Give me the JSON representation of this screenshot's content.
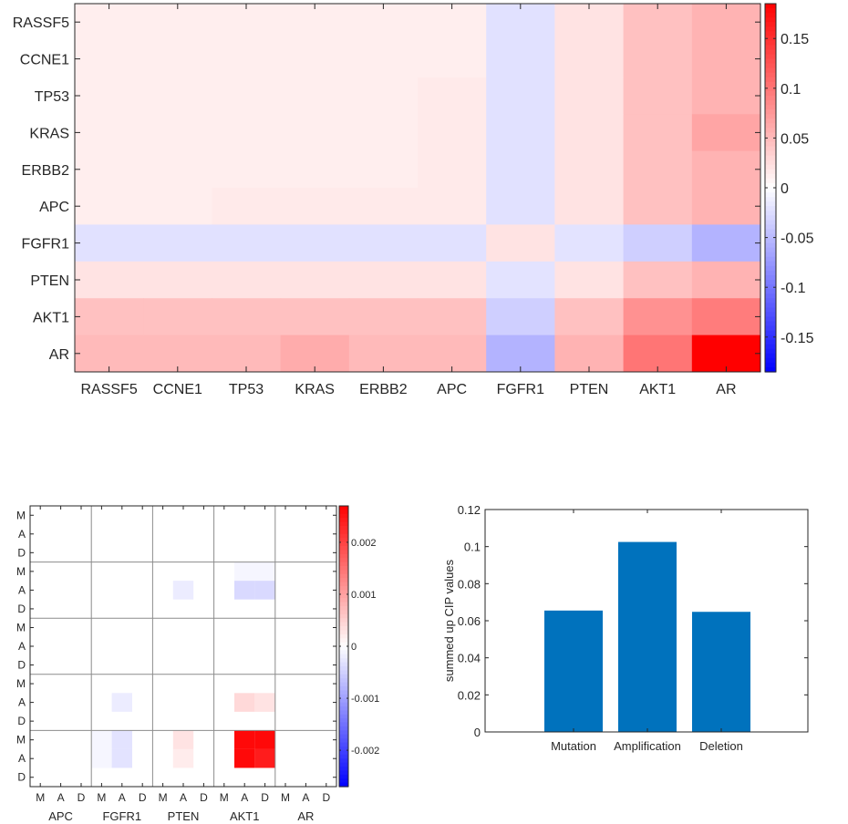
{
  "chart_data": [
    {
      "type": "heatmap",
      "rows": [
        "RASSF5",
        "CCNE1",
        "TP53",
        "KRAS",
        "ERBB2",
        "APC",
        "FGFR1",
        "PTEN",
        "AKT1",
        "AR"
      ],
      "cols": [
        "RASSF5",
        "CCNE1",
        "TP53",
        "KRAS",
        "ERBB2",
        "APC",
        "FGFR1",
        "PTEN",
        "AKT1",
        "AR"
      ],
      "values": [
        [
          0.012,
          0.012,
          0.012,
          0.012,
          0.012,
          0.012,
          -0.022,
          0.02,
          0.045,
          0.055
        ],
        [
          0.012,
          0.012,
          0.012,
          0.012,
          0.012,
          0.012,
          -0.022,
          0.02,
          0.045,
          0.055
        ],
        [
          0.012,
          0.012,
          0.012,
          0.012,
          0.012,
          0.015,
          -0.022,
          0.02,
          0.045,
          0.055
        ],
        [
          0.012,
          0.012,
          0.012,
          0.012,
          0.012,
          0.015,
          -0.022,
          0.02,
          0.045,
          0.065
        ],
        [
          0.012,
          0.012,
          0.012,
          0.012,
          0.012,
          0.015,
          -0.022,
          0.02,
          0.045,
          0.055
        ],
        [
          0.012,
          0.012,
          0.015,
          0.015,
          0.015,
          0.015,
          -0.022,
          0.02,
          0.045,
          0.055
        ],
        [
          -0.022,
          -0.022,
          -0.022,
          -0.022,
          -0.022,
          -0.022,
          0.02,
          -0.02,
          -0.035,
          -0.055
        ],
        [
          0.02,
          0.02,
          0.02,
          0.02,
          0.02,
          0.02,
          -0.02,
          0.02,
          0.045,
          0.055
        ],
        [
          0.045,
          0.045,
          0.045,
          0.045,
          0.045,
          0.045,
          -0.035,
          0.045,
          0.08,
          0.095
        ],
        [
          0.05,
          0.05,
          0.05,
          0.06,
          0.05,
          0.05,
          -0.055,
          0.055,
          0.1,
          0.185
        ]
      ],
      "colorbar": {
        "ticks": [
          0.15,
          0.1,
          0.05,
          0,
          -0.05,
          -0.1,
          -0.15
        ],
        "tick_labels": [
          "0.15",
          "0.1",
          "0.05",
          "0",
          "-0.05",
          "-0.1",
          "-0.15"
        ],
        "range": [
          -0.185,
          0.185
        ]
      },
      "colors": {
        "neg": "#0000ff",
        "mid": "#ffffff",
        "pos": "#ff0000"
      }
    },
    {
      "type": "heatmap",
      "row_groups": [
        "APC",
        "FGFR1",
        "PTEN",
        "AKT1",
        "AR"
      ],
      "row_sub": [
        "M",
        "A",
        "D"
      ],
      "col_groups": [
        "APC",
        "FGFR1",
        "PTEN",
        "AKT1",
        "AR"
      ],
      "col_sub": [
        "M",
        "A",
        "D"
      ],
      "cells": [
        {
          "row": 3,
          "col": 10,
          "value": -0.0001
        },
        {
          "row": 3,
          "col": 11,
          "value": -0.0001
        },
        {
          "row": 4,
          "col": 10,
          "value": -0.0004
        },
        {
          "row": 4,
          "col": 11,
          "value": -0.0004
        },
        {
          "row": 4,
          "col": 7,
          "value": -0.0002
        },
        {
          "row": 10,
          "col": 4,
          "value": -0.0002
        },
        {
          "row": 10,
          "col": 10,
          "value": 0.0004
        },
        {
          "row": 10,
          "col": 11,
          "value": 0.0003
        },
        {
          "row": 12,
          "col": 3,
          "value": -0.0001
        },
        {
          "row": 12,
          "col": 4,
          "value": -0.0003
        },
        {
          "row": 12,
          "col": 7,
          "value": 0.0003
        },
        {
          "row": 12,
          "col": 10,
          "value": 0.0026
        },
        {
          "row": 12,
          "col": 11,
          "value": 0.0026
        },
        {
          "row": 13,
          "col": 3,
          "value": -0.0001
        },
        {
          "row": 13,
          "col": 4,
          "value": -0.0003
        },
        {
          "row": 13,
          "col": 7,
          "value": 0.0002
        },
        {
          "row": 13,
          "col": 10,
          "value": 0.0026
        },
        {
          "row": 13,
          "col": 11,
          "value": 0.0024
        }
      ],
      "colorbar": {
        "ticks": [
          0.002,
          0.001,
          0,
          -0.001,
          -0.002
        ],
        "tick_labels": [
          "0.002",
          "0.001",
          "0",
          "-0.001",
          "-0.002"
        ],
        "range": [
          -0.0027,
          0.0027
        ]
      },
      "colors": {
        "neg": "#0000ff",
        "mid": "#ffffff",
        "pos": "#ff0000",
        "grid": "#8c8c8c"
      }
    },
    {
      "type": "bar",
      "categories": [
        "Mutation",
        "Amplification",
        "Deletion"
      ],
      "values": [
        0.0655,
        0.1025,
        0.0648
      ],
      "ylabel": "summed up CIP values",
      "ylim": [
        0,
        0.12
      ],
      "yticks": [
        0,
        0.02,
        0.04,
        0.06,
        0.08,
        0.1,
        0.12
      ],
      "ytick_labels": [
        "0",
        "0.02",
        "0.04",
        "0.06",
        "0.08",
        "0.1",
        "0.12"
      ],
      "colors": {
        "bar": "#0072bd"
      }
    }
  ]
}
